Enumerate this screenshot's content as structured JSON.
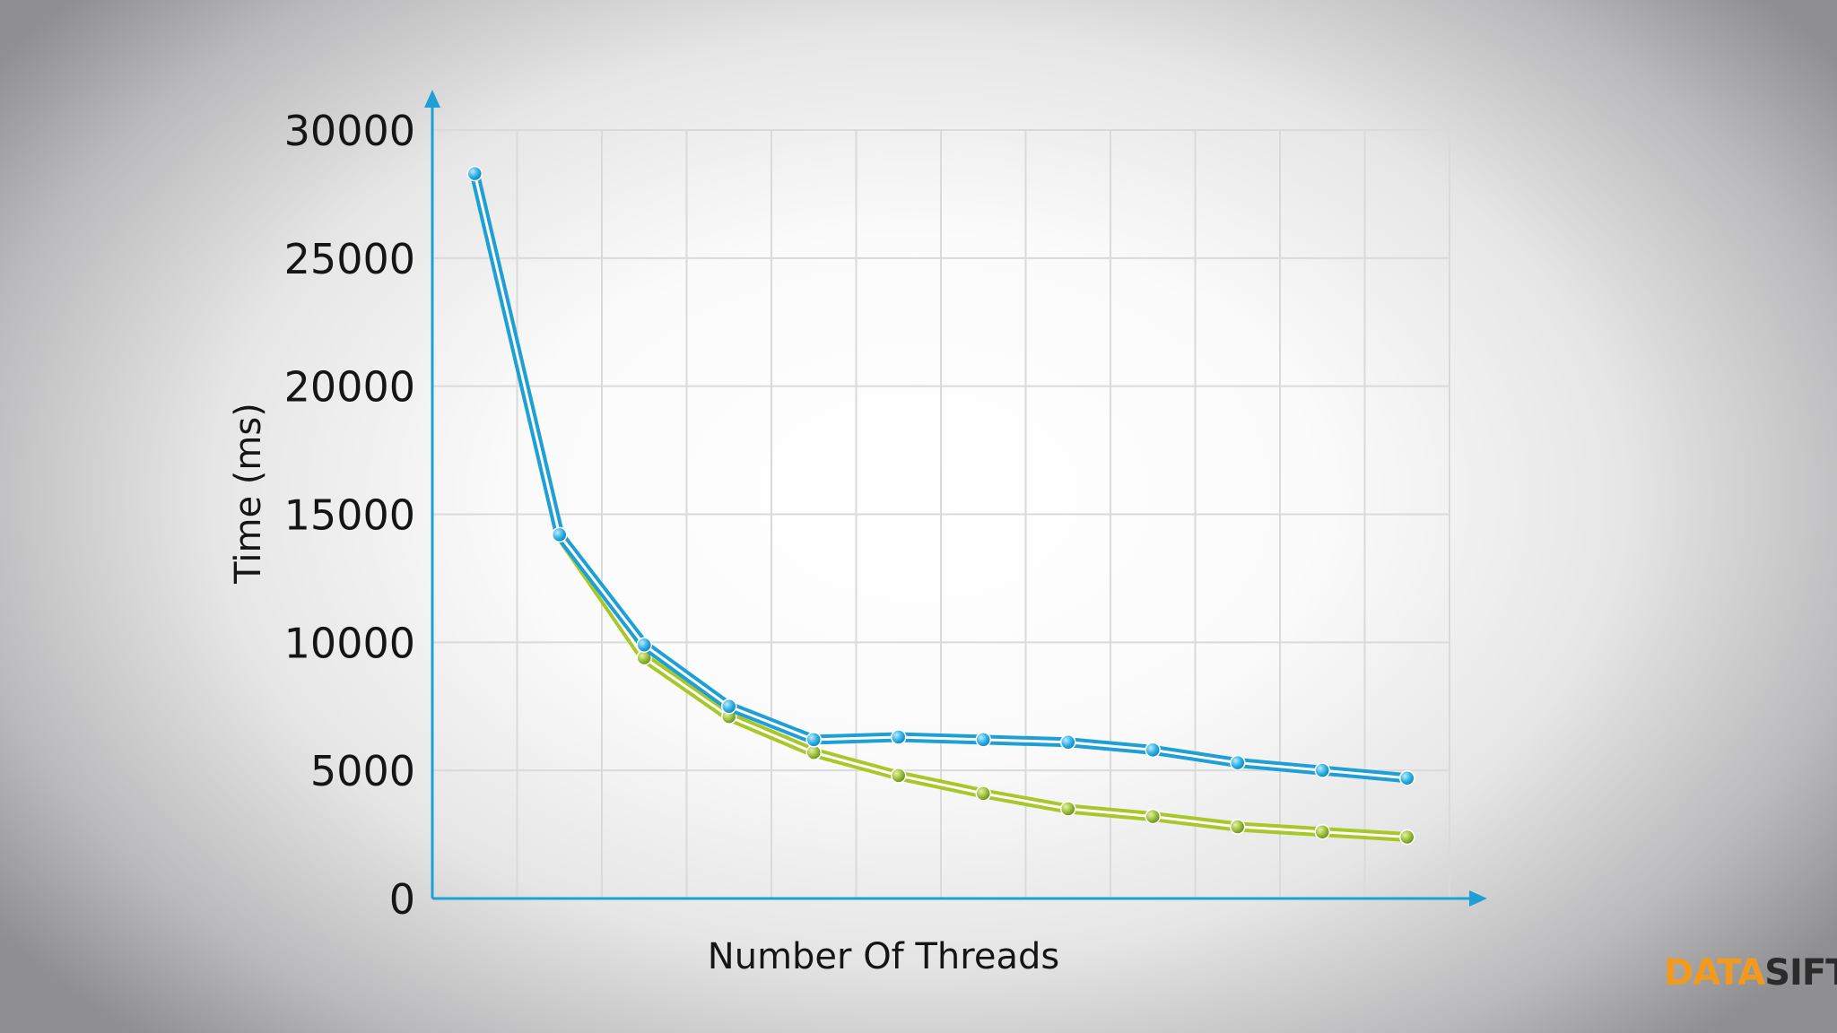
{
  "chart_data": {
    "type": "line",
    "title": "",
    "xlabel": "Number Of Threads",
    "ylabel": "Time (ms)",
    "ylim": [
      0,
      30000
    ],
    "yticks": [
      0,
      5000,
      10000,
      15000,
      20000,
      25000,
      30000
    ],
    "grid": true,
    "legend": "none",
    "x": [
      1,
      2,
      3,
      4,
      5,
      6,
      7,
      8,
      9,
      10,
      11,
      12
    ],
    "series": [
      {
        "color": "#1ea0d6",
        "values": [
          28300,
          14200,
          9900,
          7500,
          6200,
          6300,
          6200,
          6100,
          5800,
          5300,
          5000,
          4700
        ]
      },
      {
        "color": "#a8c82a",
        "values": [
          28300,
          14200,
          9400,
          7100,
          5700,
          4800,
          4100,
          3500,
          3200,
          2800,
          2600,
          2400
        ]
      }
    ]
  },
  "logo": {
    "part1": "DATA",
    "part2": "SIFT",
    "color1": "#f29a1f",
    "color2": "#2b2b2b"
  }
}
